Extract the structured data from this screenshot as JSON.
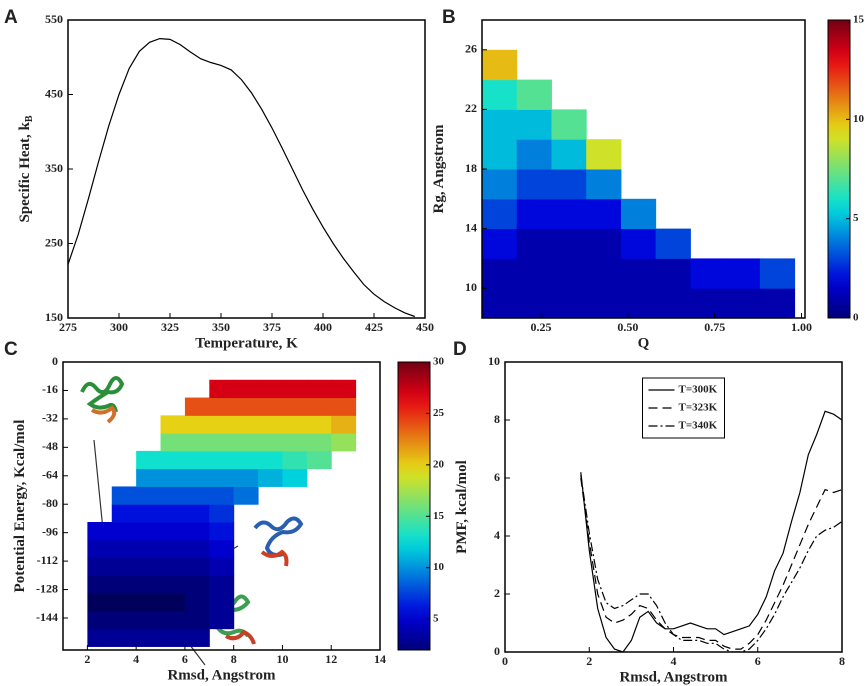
{
  "chart_data": [
    {
      "type": "line",
      "label": "A",
      "xlabel": "Temperature, K",
      "ylabel": "Specific Heat, k",
      "ylabel_subscript": "B",
      "xlim": [
        275,
        450
      ],
      "xticks": [
        275,
        300,
        325,
        350,
        375,
        400,
        425,
        450
      ],
      "ylim": [
        150,
        550
      ],
      "yticks": [
        150,
        250,
        350,
        450,
        550
      ],
      "x": [
        275,
        280,
        285,
        290,
        295,
        300,
        305,
        310,
        315,
        320,
        325,
        330,
        335,
        340,
        345,
        350,
        355,
        360,
        365,
        370,
        375,
        380,
        385,
        390,
        395,
        400,
        405,
        410,
        415,
        420,
        425,
        430,
        435,
        440,
        445
      ],
      "values": [
        222,
        262,
        310,
        360,
        408,
        450,
        485,
        508,
        520,
        525,
        524,
        517,
        507,
        498,
        493,
        489,
        483,
        470,
        452,
        430,
        405,
        378,
        350,
        322,
        296,
        272,
        250,
        230,
        212,
        195,
        182,
        172,
        164,
        157,
        152
      ],
      "color": "#000000"
    },
    {
      "type": "heatmap",
      "label": "B",
      "xlabel": "Q",
      "ylabel": "Rg, Angstrom",
      "colormap": "jet",
      "xlim": [
        0.08,
        1.01
      ],
      "xticks": [
        0.25,
        {
          "value": 0.5,
          "label": "0.50"
        },
        0.75,
        {
          "value": 1,
          "label": "1.00"
        }
      ],
      "ylim": [
        8,
        28
      ],
      "yticks": [
        10,
        14,
        18,
        22,
        26
      ],
      "clim": [
        0,
        15
      ],
      "colorbar_ticks": [
        0,
        5,
        10,
        15
      ],
      "x_bins": [
        0.08,
        0.18,
        0.28,
        0.38,
        0.48,
        0.58,
        0.68,
        0.78,
        0.88,
        0.98
      ],
      "y_bins": [
        8,
        10,
        12,
        14,
        16,
        18,
        20,
        22,
        24,
        26
      ],
      "z": [
        [
          1,
          1,
          1,
          1,
          1,
          1,
          1,
          1,
          1
        ],
        [
          1,
          1,
          1,
          1,
          1,
          1,
          2,
          2,
          3
        ],
        [
          2,
          1,
          1,
          1,
          2,
          3,
          null,
          null,
          null
        ],
        [
          3,
          2,
          2,
          2,
          4,
          null,
          null,
          null,
          null
        ],
        [
          4,
          3,
          3,
          4,
          null,
          null,
          null,
          null,
          null
        ],
        [
          5,
          4,
          5,
          9,
          null,
          null,
          null,
          null,
          null
        ],
        [
          5,
          5,
          7,
          null,
          null,
          null,
          null,
          null,
          null
        ],
        [
          6,
          7,
          null,
          null,
          null,
          null,
          null,
          null,
          null
        ],
        [
          10,
          null,
          null,
          null,
          null,
          null,
          null,
          null,
          null
        ]
      ]
    },
    {
      "type": "heatmap",
      "label": "C",
      "xlabel": "Rmsd, Angstrom",
      "ylabel": "Potential Energy, Kcal/mol",
      "colormap": "jet",
      "xlim": [
        1,
        14
      ],
      "xticks": [
        2,
        4,
        6,
        8,
        10,
        12,
        14
      ],
      "ylim": [
        -162,
        0
      ],
      "yticks": [
        -144,
        -128,
        -112,
        -96,
        -80,
        -64,
        -48,
        -32,
        -16,
        0
      ],
      "clim": [
        2,
        30
      ],
      "colorbar_ticks": [
        5,
        10,
        15,
        20,
        25,
        30
      ],
      "x_bins": [
        2,
        3,
        4,
        5,
        6,
        7,
        8,
        9,
        10,
        11,
        12,
        13
      ],
      "y_bins": [
        -160,
        -150,
        -140,
        -130,
        -120,
        -110,
        -100,
        -90,
        -80,
        -70,
        -60,
        -50,
        -40,
        -30,
        -20,
        -10
      ],
      "z": [
        [
          3,
          3,
          3,
          3,
          3,
          null,
          null,
          null,
          null,
          null,
          null
        ],
        [
          2,
          2,
          2,
          2,
          2,
          3,
          null,
          null,
          null,
          null,
          null
        ],
        [
          1,
          1,
          1,
          1,
          2,
          3,
          null,
          null,
          null,
          null,
          null
        ],
        [
          2,
          2,
          2,
          2,
          2,
          3,
          null,
          null,
          null,
          null,
          null
        ],
        [
          3,
          3,
          3,
          3,
          3,
          4,
          null,
          null,
          null,
          null,
          null
        ],
        [
          4,
          4,
          4,
          4,
          4,
          5,
          null,
          null,
          null,
          null,
          null
        ],
        [
          5,
          5,
          5,
          5,
          5,
          6,
          null,
          null,
          null,
          null,
          null
        ],
        [
          null,
          6,
          6,
          6,
          6,
          7,
          null,
          null,
          null,
          null,
          null
        ],
        [
          null,
          8,
          8,
          8,
          8,
          8,
          9,
          null,
          null,
          null,
          null
        ],
        [
          null,
          null,
          10,
          10,
          10,
          10,
          10,
          11,
          12,
          null,
          null
        ],
        [
          null,
          null,
          13,
          13,
          13,
          13,
          13,
          13,
          14,
          15,
          null
        ],
        [
          null,
          null,
          null,
          16,
          16,
          16,
          16,
          16,
          16,
          16,
          17
        ],
        [
          null,
          null,
          null,
          20,
          20,
          20,
          20,
          20,
          20,
          20,
          21
        ],
        [
          null,
          null,
          null,
          null,
          24,
          24,
          24,
          24,
          24,
          24,
          24
        ],
        [
          null,
          null,
          null,
          null,
          null,
          27,
          27,
          27,
          27,
          27,
          27
        ]
      ]
    },
    {
      "type": "line",
      "label": "D",
      "xlabel": "Rmsd, Angstrom",
      "ylabel": "PMF, kcal/mol",
      "legend": "upper center",
      "xlim": [
        0,
        8
      ],
      "xticks": [
        0,
        2,
        4,
        6,
        8
      ],
      "ylim": [
        0,
        10
      ],
      "yticks": [
        0,
        2,
        4,
        6,
        8,
        10
      ],
      "x": [
        1.8,
        2.0,
        2.2,
        2.4,
        2.6,
        2.8,
        3.0,
        3.2,
        3.4,
        3.6,
        3.8,
        4.0,
        4.2,
        4.4,
        4.6,
        4.8,
        5.0,
        5.2,
        5.4,
        5.6,
        5.8,
        6.0,
        6.2,
        6.4,
        6.6,
        6.8,
        7.0,
        7.2,
        7.4,
        7.6,
        7.8,
        8.0
      ],
      "series": [
        {
          "name": "T=300K",
          "color": "#000000",
          "style": "solid",
          "values": [
            6.2,
            3.5,
            1.5,
            0.5,
            0.1,
            0.0,
            0.4,
            1.2,
            1.4,
            1.0,
            0.8,
            0.8,
            0.9,
            1.0,
            0.9,
            0.8,
            0.8,
            0.6,
            0.7,
            0.8,
            0.9,
            1.3,
            1.9,
            2.8,
            3.4,
            4.5,
            5.5,
            6.8,
            7.5,
            8.3,
            8.2,
            8.0
          ]
        },
        {
          "name": "T=323K",
          "color": "#000000",
          "style": "dashed",
          "values": [
            6.0,
            3.8,
            2.0,
            1.2,
            1.0,
            1.1,
            1.3,
            1.6,
            1.5,
            1.1,
            0.8,
            0.6,
            0.5,
            0.5,
            0.5,
            0.4,
            0.4,
            0.2,
            0.1,
            0.1,
            0.3,
            0.6,
            1.1,
            1.7,
            2.3,
            3.0,
            3.7,
            4.4,
            5.0,
            5.6,
            5.5,
            5.6
          ]
        },
        {
          "name": "T=340K",
          "color": "#000000",
          "style": "dashdot",
          "values": [
            6.1,
            4.1,
            2.5,
            1.7,
            1.5,
            1.6,
            1.8,
            2.0,
            2.0,
            1.6,
            1.0,
            0.6,
            0.4,
            0.4,
            0.4,
            0.3,
            0.3,
            0.1,
            0.0,
            0.0,
            0.1,
            0.4,
            0.8,
            1.3,
            1.9,
            2.4,
            2.9,
            3.5,
            4.0,
            4.2,
            4.3,
            4.5
          ]
        }
      ]
    }
  ]
}
